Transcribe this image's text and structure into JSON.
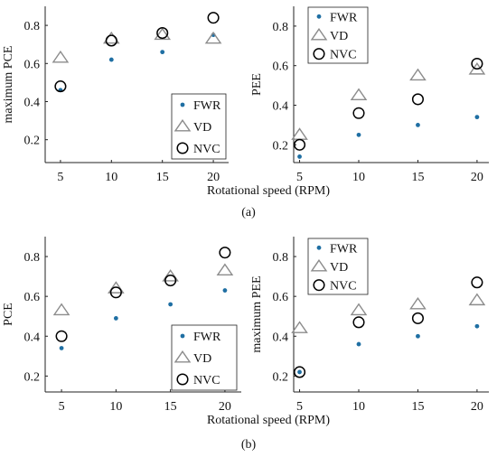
{
  "panel_labels": [
    "(a)",
    "(b)"
  ],
  "shared_xlabel": "Rotational speed (RPM)",
  "series_styles": {
    "FWR": {
      "marker": "dot",
      "color": "#1f6fa3"
    },
    "VD": {
      "marker": "triangle",
      "color": "#8c8c8c"
    },
    "NVC": {
      "marker": "circle",
      "color": "#000000"
    }
  },
  "chart_data": [
    {
      "type": "scatter",
      "ylabel": "maximum PCE",
      "x": [
        5,
        10,
        15,
        20
      ],
      "xlim": [
        3.5,
        21.5
      ],
      "ylim": [
        0.08,
        0.9
      ],
      "yticks": [
        0.2,
        0.4,
        0.6,
        0.8
      ],
      "xticks": [
        5,
        10,
        15,
        20
      ],
      "legend": "bottom-right",
      "series": [
        {
          "name": "FWR",
          "values": [
            0.46,
            0.62,
            0.66,
            0.75
          ]
        },
        {
          "name": "VD",
          "values": [
            0.63,
            0.73,
            0.75,
            0.73
          ]
        },
        {
          "name": "NVC",
          "values": [
            0.48,
            0.72,
            0.76,
            0.84
          ]
        }
      ]
    },
    {
      "type": "scatter",
      "ylabel": "PEE",
      "x": [
        5,
        10,
        15,
        20
      ],
      "xlim": [
        4.5,
        21
      ],
      "ylim": [
        0.11,
        0.9
      ],
      "yticks": [
        0.2,
        0.4,
        0.6,
        0.8
      ],
      "xticks": [
        5,
        10,
        15,
        20
      ],
      "legend": "top-left",
      "series": [
        {
          "name": "FWR",
          "values": [
            0.14,
            0.25,
            0.3,
            0.34
          ]
        },
        {
          "name": "VD",
          "values": [
            0.25,
            0.45,
            0.55,
            0.58
          ]
        },
        {
          "name": "NVC",
          "values": [
            0.2,
            0.36,
            0.43,
            0.61
          ]
        }
      ]
    },
    {
      "type": "scatter",
      "ylabel": "PCE",
      "x": [
        5,
        10,
        15,
        20
      ],
      "xlim": [
        3.5,
        21.5
      ],
      "ylim": [
        0.12,
        0.9
      ],
      "yticks": [
        0.2,
        0.4,
        0.6,
        0.8
      ],
      "xticks": [
        5,
        10,
        15,
        20
      ],
      "legend": "bottom-right",
      "series": [
        {
          "name": "FWR",
          "values": [
            0.34,
            0.49,
            0.56,
            0.63
          ]
        },
        {
          "name": "VD",
          "values": [
            0.53,
            0.64,
            0.7,
            0.73
          ]
        },
        {
          "name": "NVC",
          "values": [
            0.4,
            0.62,
            0.68,
            0.82
          ]
        }
      ]
    },
    {
      "type": "scatter",
      "ylabel": "maximum PEE",
      "x": [
        5,
        10,
        15,
        20
      ],
      "xlim": [
        4.5,
        21
      ],
      "ylim": [
        0.12,
        0.9
      ],
      "yticks": [
        0.2,
        0.4,
        0.6,
        0.8
      ],
      "xticks": [
        5,
        10,
        15,
        20
      ],
      "legend": "top-left",
      "series": [
        {
          "name": "FWR",
          "values": [
            0.22,
            0.36,
            0.4,
            0.45
          ]
        },
        {
          "name": "VD",
          "values": [
            0.44,
            0.53,
            0.56,
            0.58
          ]
        },
        {
          "name": "NVC",
          "values": [
            0.22,
            0.47,
            0.49,
            0.67
          ]
        }
      ]
    }
  ]
}
